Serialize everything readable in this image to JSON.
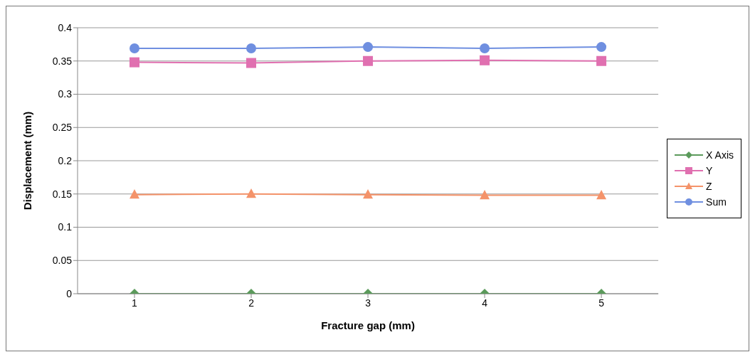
{
  "chart_data": {
    "type": "line",
    "xlabel": "Fracture gap (mm)",
    "ylabel": "Displacement (mm)",
    "categories": [
      "1",
      "2",
      "3",
      "4",
      "5"
    ],
    "series": [
      {
        "name": "X Axis",
        "color": "#5b9a5b",
        "marker": "diamond",
        "values": [
          0.0,
          0.0,
          0.0,
          0.0,
          0.0
        ]
      },
      {
        "name": "Y",
        "color": "#e070b0",
        "marker": "square",
        "values": [
          0.348,
          0.347,
          0.35,
          0.351,
          0.35
        ]
      },
      {
        "name": "Z",
        "color": "#f4936a",
        "marker": "triangle",
        "values": [
          0.149,
          0.15,
          0.149,
          0.148,
          0.148
        ]
      },
      {
        "name": "Sum",
        "color": "#6f8fe0",
        "marker": "circle",
        "values": [
          0.369,
          0.369,
          0.371,
          0.369,
          0.371
        ]
      }
    ],
    "ylim": [
      0,
      0.4
    ],
    "yticks": [
      0,
      0.05,
      0.1,
      0.15,
      0.2,
      0.25,
      0.3,
      0.35,
      0.4
    ],
    "grid": "y",
    "legend": "right"
  }
}
